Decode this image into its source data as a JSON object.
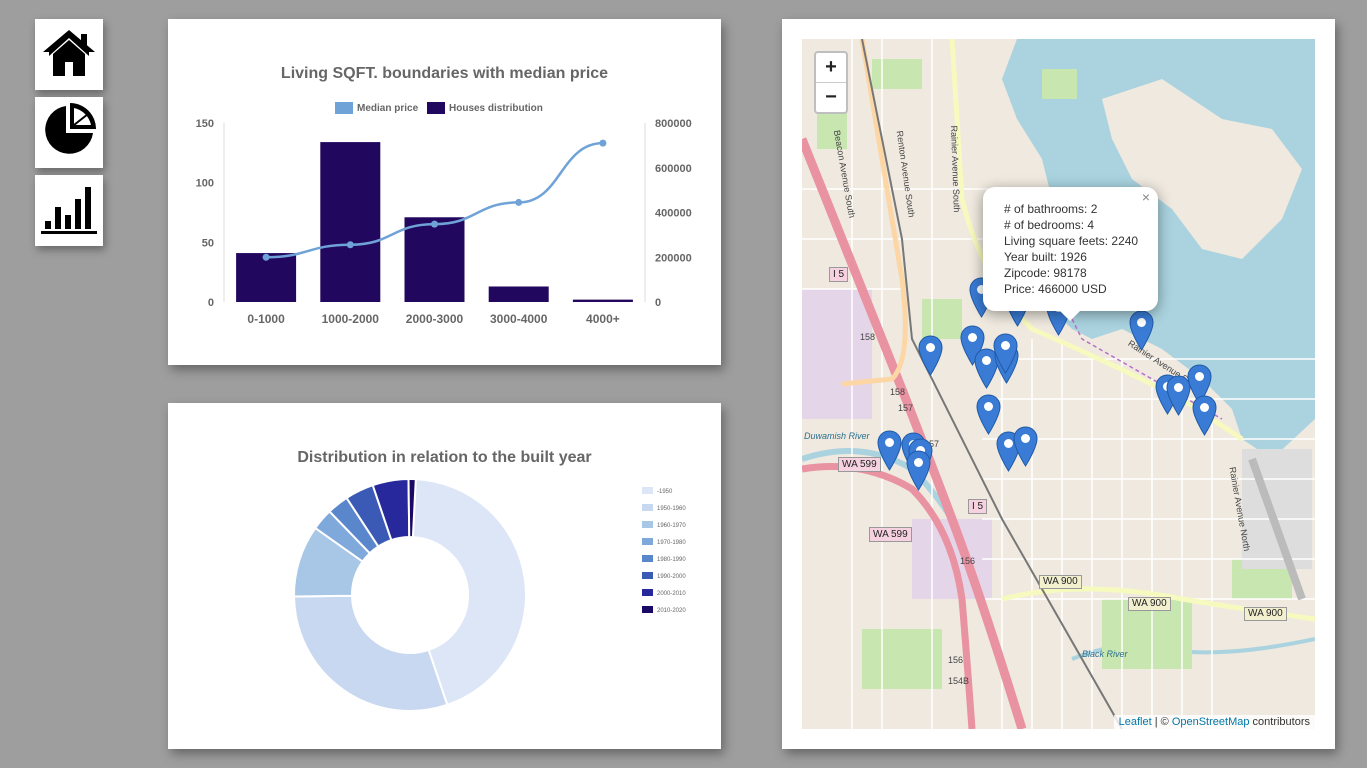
{
  "nav": {
    "home_icon": "home-icon",
    "pie_icon": "pie-chart-icon",
    "bar_icon": "bar-chart-icon"
  },
  "sqft_chart": {
    "chart_data": {
      "type": "bar",
      "title": "Living SQFT. boundaries with median price",
      "categories": [
        "0-1000",
        "1000-2000",
        "2000-3000",
        "3000-4000",
        "4000+"
      ],
      "series": [
        {
          "name": "Houses distribution",
          "type": "bar",
          "axis": "left",
          "color": "#22075e",
          "values": [
            41,
            134,
            71,
            13,
            2
          ]
        },
        {
          "name": "Median price",
          "type": "line",
          "axis": "right",
          "color": "#6fa2d6",
          "values": [
            200000,
            256000,
            348000,
            445000,
            710000
          ]
        }
      ],
      "y_left": {
        "ticks": [
          "0",
          "50",
          "100",
          "150"
        ],
        "range": [
          0,
          150
        ]
      },
      "y_right": {
        "ticks": [
          "0",
          "200000",
          "400000",
          "600000",
          "800000"
        ],
        "range": [
          0,
          800000
        ]
      },
      "legend_labels": [
        "Median price",
        "Houses distribution"
      ]
    }
  },
  "year_chart": {
    "chart_data": {
      "type": "pie",
      "variant": "doughnut",
      "title": "Distribution in relation to the built year",
      "labels": [
        "-1950",
        "1950-1960",
        "1960-1970",
        "1970-1980",
        "1980-1990",
        "1990-2000",
        "2000-2010",
        "2010-2020"
      ],
      "values": [
        44,
        30,
        10,
        3,
        3,
        4,
        5,
        1
      ],
      "colors": [
        "#dce6f7",
        "#c8d8f0",
        "#a8c6e6",
        "#7fa9da",
        "#5a86cc",
        "#3a5ab6",
        "#26289c",
        "#1a0a66"
      ]
    }
  },
  "map": {
    "zoom_in": "+",
    "zoom_out": "−",
    "popup": {
      "close": "×",
      "lines": [
        "# of bathrooms: 2",
        "# of bedrooms: 4",
        "Living square feets: 2240",
        "Year built: 1926",
        "Zipcode: 98178",
        "Price: 466000 USD"
      ]
    },
    "attribution": {
      "leaflet": "Leaflet",
      "sep": " | © ",
      "osm": "OpenStreetMap",
      "rest": " contributors"
    },
    "labels": {
      "i5_a": "I 5",
      "i5_b": "I 5",
      "wa599_a": "WA 599",
      "wa599_b": "WA 599",
      "wa900_a": "WA 900",
      "wa900_b": "WA 900",
      "wa900_c": "WA 900",
      "n158": "158",
      "n158b": "158",
      "n157": "157",
      "n157b": "157",
      "n156": "156",
      "n156b": "156",
      "n154b": "154B",
      "beacon": "Beacon Avenue South",
      "renton": "Renton Avenue South",
      "rainier": "Rainier Avenue South",
      "rainier2": "Rainier Avenue South",
      "rainier_n": "Rainier Avenue North",
      "duwamish": "Duwamish River",
      "black": "Black River"
    }
  }
}
